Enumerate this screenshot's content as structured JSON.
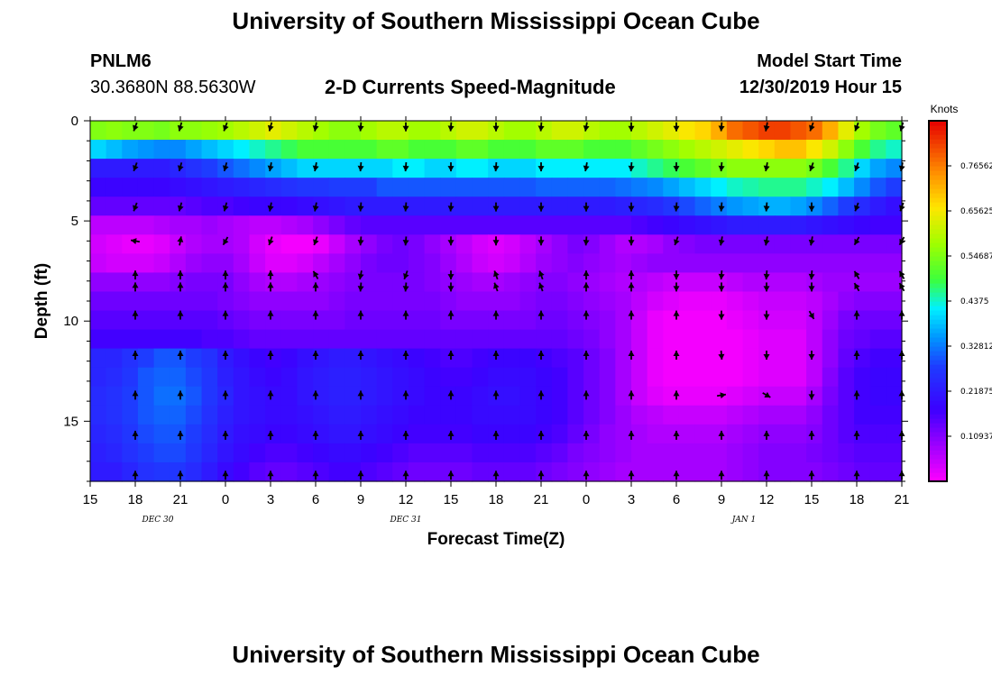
{
  "header": {
    "title": "University of Southern Mississippi Ocean Cube",
    "station": "PNLM6",
    "coords": "30.3680N 88.5630W",
    "subtitle": "2-D Currents Speed-Magnitude",
    "start_label": "Model Start Time",
    "start_value": "12/30/2019 Hour 15"
  },
  "footer": {
    "title": "University of Southern Mississippi Ocean Cube"
  },
  "chart_data": {
    "type": "heatmap",
    "title": "2-D Currents Speed-Magnitude",
    "xlabel": "Forecast Time(Z)",
    "ylabel": "Depth (ft)",
    "x_tick_labels": [
      "15",
      "18",
      "21",
      "0",
      "3",
      "6",
      "9",
      "12",
      "15",
      "18",
      "21",
      "0",
      "3",
      "6",
      "9",
      "12",
      "15",
      "18",
      "21"
    ],
    "x_hours": [
      0,
      3,
      6,
      9,
      12,
      15,
      18,
      21,
      24,
      27,
      30,
      33,
      36,
      39,
      42,
      45,
      48,
      51,
      54
    ],
    "date_labels": [
      {
        "text": "DEC  30",
        "hour": 4.5
      },
      {
        "text": "DEC  31",
        "hour": 21
      },
      {
        "text": "JAN  1",
        "hour": 43.5
      }
    ],
    "y_ticks": [
      0,
      5,
      10,
      15
    ],
    "ylim": [
      0,
      18
    ],
    "colorbar": {
      "unit": "Knots",
      "range": [
        0,
        0.875
      ],
      "tick_values": [
        0.10937,
        0.21875,
        0.32812,
        0.4375,
        0.54687,
        0.65625,
        0.76562
      ],
      "tick_labels": [
        "0.10937",
        "0.21875",
        "0.32812",
        "0.4375",
        "0.54687",
        "0.65625",
        "0.76562"
      ]
    },
    "depth_layers_ft": [
      0.3,
      1,
      2,
      3,
      4,
      5,
      6,
      7,
      8,
      9,
      10,
      11,
      12,
      13,
      14,
      15,
      16,
      17,
      17.8
    ],
    "arrow_hours": [
      3,
      6,
      9,
      12,
      15,
      18,
      21,
      24,
      27,
      30,
      33,
      36,
      39,
      42,
      45,
      48,
      51,
      54
    ],
    "arrow_depths_ft": [
      0.3,
      2.3,
      4.3,
      6,
      7.7,
      8.3,
      9.7,
      11.7,
      13.7,
      15.7,
      17.7
    ],
    "arrow_directions_deg": [
      [
        200,
        195,
        200,
        195,
        190,
        185,
        180,
        185,
        180,
        185,
        190,
        180,
        180,
        185,
        190,
        200,
        200,
        195
      ],
      [
        200,
        195,
        195,
        190,
        190,
        185,
        185,
        180,
        185,
        180,
        190,
        185,
        180,
        185,
        190,
        200,
        200,
        190
      ],
      [
        200,
        195,
        195,
        190,
        190,
        185,
        185,
        185,
        180,
        180,
        180,
        180,
        185,
        185,
        185,
        180,
        200,
        200
      ],
      [
        280,
        10,
        210,
        200,
        200,
        185,
        185,
        180,
        180,
        180,
        185,
        180,
        200,
        190,
        190,
        190,
        210,
        210
      ],
      [
        0,
        0,
        0,
        0,
        330,
        190,
        200,
        180,
        340,
        340,
        0,
        0,
        180,
        185,
        185,
        185,
        330,
        330
      ],
      [
        0,
        0,
        0,
        0,
        0,
        185,
        185,
        180,
        340,
        340,
        0,
        0,
        180,
        180,
        180,
        180,
        330,
        330
      ],
      [
        0,
        0,
        0,
        0,
        0,
        0,
        0,
        0,
        0,
        0,
        0,
        0,
        0,
        180,
        180,
        150,
        0,
        0
      ],
      [
        0,
        0,
        0,
        0,
        0,
        0,
        0,
        0,
        0,
        0,
        0,
        0,
        0,
        175,
        180,
        180,
        0,
        0
      ],
      [
        0,
        0,
        0,
        0,
        0,
        0,
        0,
        0,
        0,
        0,
        0,
        0,
        0,
        80,
        120,
        180,
        0,
        0
      ],
      [
        0,
        0,
        0,
        0,
        0,
        0,
        0,
        0,
        0,
        0,
        0,
        0,
        0,
        0,
        0,
        0,
        0,
        0
      ],
      [
        0,
        0,
        0,
        0,
        0,
        0,
        0,
        0,
        0,
        0,
        0,
        0,
        0,
        0,
        0,
        0,
        0,
        0
      ]
    ],
    "speed_grid_knots": [
      [
        0.55,
        0.56,
        0.55,
        0.55,
        0.54,
        0.56,
        0.56,
        0.57,
        0.58,
        0.6,
        0.62,
        0.64,
        0.62,
        0.6,
        0.58,
        0.56,
        0.56,
        0.58,
        0.6,
        0.6,
        0.58,
        0.58,
        0.6,
        0.62,
        0.62,
        0.6,
        0.58,
        0.58,
        0.6,
        0.62,
        0.62,
        0.6,
        0.58,
        0.58,
        0.6,
        0.62,
        0.64,
        0.66,
        0.68,
        0.72,
        0.78,
        0.8,
        0.82,
        0.82,
        0.8,
        0.78,
        0.72,
        0.64,
        0.58,
        0.54,
        0.52
      ],
      [
        0.4,
        0.38,
        0.36,
        0.35,
        0.34,
        0.34,
        0.36,
        0.38,
        0.4,
        0.42,
        0.44,
        0.46,
        0.48,
        0.5,
        0.5,
        0.5,
        0.5,
        0.5,
        0.52,
        0.52,
        0.5,
        0.5,
        0.5,
        0.52,
        0.52,
        0.5,
        0.5,
        0.5,
        0.52,
        0.52,
        0.52,
        0.5,
        0.5,
        0.5,
        0.52,
        0.54,
        0.56,
        0.58,
        0.6,
        0.62,
        0.64,
        0.66,
        0.68,
        0.7,
        0.7,
        0.66,
        0.62,
        0.56,
        0.5,
        0.46,
        0.44
      ],
      [
        0.22,
        0.22,
        0.22,
        0.22,
        0.22,
        0.24,
        0.26,
        0.28,
        0.3,
        0.32,
        0.34,
        0.36,
        0.38,
        0.4,
        0.4,
        0.4,
        0.4,
        0.4,
        0.4,
        0.42,
        0.42,
        0.4,
        0.4,
        0.42,
        0.42,
        0.4,
        0.4,
        0.4,
        0.42,
        0.42,
        0.42,
        0.42,
        0.42,
        0.42,
        0.44,
        0.46,
        0.48,
        0.5,
        0.52,
        0.54,
        0.56,
        0.56,
        0.56,
        0.56,
        0.56,
        0.54,
        0.5,
        0.46,
        0.4,
        0.36,
        0.34
      ],
      [
        0.18,
        0.18,
        0.18,
        0.18,
        0.18,
        0.19,
        0.2,
        0.21,
        0.22,
        0.23,
        0.24,
        0.25,
        0.26,
        0.27,
        0.27,
        0.28,
        0.28,
        0.28,
        0.3,
        0.3,
        0.3,
        0.3,
        0.3,
        0.3,
        0.3,
        0.3,
        0.3,
        0.3,
        0.31,
        0.31,
        0.31,
        0.31,
        0.31,
        0.32,
        0.33,
        0.34,
        0.36,
        0.38,
        0.4,
        0.42,
        0.44,
        0.45,
        0.46,
        0.46,
        0.46,
        0.44,
        0.42,
        0.38,
        0.34,
        0.3,
        0.28
      ],
      [
        0.14,
        0.14,
        0.14,
        0.14,
        0.14,
        0.14,
        0.15,
        0.16,
        0.16,
        0.17,
        0.18,
        0.18,
        0.18,
        0.19,
        0.2,
        0.21,
        0.22,
        0.22,
        0.22,
        0.22,
        0.22,
        0.22,
        0.22,
        0.22,
        0.22,
        0.22,
        0.22,
        0.22,
        0.22,
        0.22,
        0.22,
        0.22,
        0.22,
        0.23,
        0.24,
        0.25,
        0.27,
        0.29,
        0.31,
        0.33,
        0.35,
        0.36,
        0.37,
        0.37,
        0.36,
        0.34,
        0.31,
        0.28,
        0.25,
        0.22,
        0.2
      ],
      [
        0.06,
        0.06,
        0.06,
        0.06,
        0.07,
        0.08,
        0.08,
        0.09,
        0.08,
        0.07,
        0.06,
        0.06,
        0.07,
        0.08,
        0.1,
        0.12,
        0.14,
        0.15,
        0.15,
        0.15,
        0.15,
        0.15,
        0.15,
        0.15,
        0.15,
        0.15,
        0.15,
        0.15,
        0.15,
        0.15,
        0.15,
        0.15,
        0.15,
        0.15,
        0.16,
        0.17,
        0.18,
        0.19,
        0.2,
        0.21,
        0.22,
        0.22,
        0.22,
        0.22,
        0.22,
        0.21,
        0.2,
        0.19,
        0.18,
        0.17,
        0.17
      ],
      [
        0.04,
        0.03,
        0.02,
        0.02,
        0.03,
        0.05,
        0.07,
        0.08,
        0.08,
        0.07,
        0.04,
        0.02,
        0.01,
        0.01,
        0.02,
        0.05,
        0.08,
        0.1,
        0.12,
        0.13,
        0.12,
        0.1,
        0.08,
        0.06,
        0.04,
        0.03,
        0.04,
        0.06,
        0.08,
        0.1,
        0.12,
        0.11,
        0.09,
        0.07,
        0.07,
        0.08,
        0.1,
        0.11,
        0.12,
        0.12,
        0.12,
        0.12,
        0.12,
        0.12,
        0.12,
        0.12,
        0.12,
        0.12,
        0.12,
        0.12,
        0.12
      ],
      [
        0.05,
        0.04,
        0.04,
        0.04,
        0.05,
        0.07,
        0.09,
        0.1,
        0.1,
        0.08,
        0.05,
        0.03,
        0.03,
        0.04,
        0.06,
        0.08,
        0.1,
        0.12,
        0.13,
        0.13,
        0.12,
        0.11,
        0.09,
        0.07,
        0.05,
        0.04,
        0.05,
        0.07,
        0.09,
        0.1,
        0.11,
        0.1,
        0.09,
        0.08,
        0.09,
        0.1,
        0.1,
        0.1,
        0.1,
        0.1,
        0.1,
        0.1,
        0.1,
        0.1,
        0.1,
        0.1,
        0.1,
        0.1,
        0.1,
        0.1,
        0.1
      ],
      [
        0.1,
        0.1,
        0.1,
        0.1,
        0.1,
        0.11,
        0.12,
        0.12,
        0.12,
        0.1,
        0.08,
        0.07,
        0.07,
        0.08,
        0.09,
        0.1,
        0.11,
        0.12,
        0.12,
        0.12,
        0.12,
        0.11,
        0.1,
        0.09,
        0.08,
        0.08,
        0.09,
        0.1,
        0.11,
        0.11,
        0.1,
        0.09,
        0.08,
        0.07,
        0.07,
        0.06,
        0.05,
        0.05,
        0.05,
        0.05,
        0.06,
        0.07,
        0.07,
        0.07,
        0.07,
        0.08,
        0.09,
        0.09,
        0.09,
        0.09,
        0.09
      ],
      [
        0.13,
        0.13,
        0.13,
        0.13,
        0.13,
        0.13,
        0.13,
        0.13,
        0.12,
        0.11,
        0.1,
        0.1,
        0.1,
        0.1,
        0.1,
        0.11,
        0.12,
        0.12,
        0.12,
        0.12,
        0.12,
        0.12,
        0.11,
        0.1,
        0.1,
        0.1,
        0.1,
        0.11,
        0.12,
        0.12,
        0.11,
        0.1,
        0.09,
        0.08,
        0.06,
        0.04,
        0.03,
        0.02,
        0.02,
        0.02,
        0.03,
        0.04,
        0.05,
        0.05,
        0.05,
        0.06,
        0.08,
        0.1,
        0.11,
        0.11,
        0.11
      ],
      [
        0.15,
        0.15,
        0.15,
        0.15,
        0.15,
        0.15,
        0.15,
        0.15,
        0.14,
        0.13,
        0.12,
        0.12,
        0.12,
        0.12,
        0.12,
        0.12,
        0.13,
        0.13,
        0.13,
        0.13,
        0.13,
        0.13,
        0.12,
        0.12,
        0.12,
        0.12,
        0.12,
        0.12,
        0.13,
        0.13,
        0.12,
        0.11,
        0.1,
        0.08,
        0.05,
        0.02,
        0.01,
        0.01,
        0.01,
        0.01,
        0.02,
        0.03,
        0.04,
        0.04,
        0.04,
        0.06,
        0.09,
        0.12,
        0.13,
        0.13,
        0.13
      ],
      [
        0.17,
        0.17,
        0.17,
        0.17,
        0.17,
        0.17,
        0.17,
        0.16,
        0.16,
        0.15,
        0.14,
        0.14,
        0.14,
        0.14,
        0.14,
        0.14,
        0.14,
        0.14,
        0.14,
        0.14,
        0.14,
        0.14,
        0.14,
        0.14,
        0.14,
        0.14,
        0.14,
        0.14,
        0.14,
        0.14,
        0.13,
        0.12,
        0.1,
        0.08,
        0.05,
        0.02,
        0.01,
        0.01,
        0.01,
        0.01,
        0.01,
        0.02,
        0.03,
        0.03,
        0.03,
        0.06,
        0.1,
        0.13,
        0.14,
        0.15,
        0.15
      ],
      [
        0.24,
        0.24,
        0.26,
        0.28,
        0.3,
        0.3,
        0.28,
        0.26,
        0.22,
        0.2,
        0.18,
        0.17,
        0.18,
        0.2,
        0.21,
        0.22,
        0.22,
        0.21,
        0.2,
        0.19,
        0.18,
        0.17,
        0.16,
        0.16,
        0.17,
        0.18,
        0.18,
        0.18,
        0.17,
        0.16,
        0.15,
        0.13,
        0.11,
        0.08,
        0.05,
        0.02,
        0.01,
        0.01,
        0.01,
        0.01,
        0.01,
        0.02,
        0.03,
        0.03,
        0.03,
        0.06,
        0.1,
        0.14,
        0.16,
        0.17,
        0.17
      ],
      [
        0.24,
        0.25,
        0.27,
        0.3,
        0.31,
        0.31,
        0.29,
        0.27,
        0.23,
        0.21,
        0.19,
        0.18,
        0.19,
        0.21,
        0.22,
        0.23,
        0.23,
        0.22,
        0.21,
        0.2,
        0.19,
        0.18,
        0.17,
        0.17,
        0.18,
        0.19,
        0.19,
        0.19,
        0.18,
        0.17,
        0.15,
        0.13,
        0.11,
        0.08,
        0.05,
        0.02,
        0.01,
        0.01,
        0.01,
        0.01,
        0.01,
        0.02,
        0.03,
        0.03,
        0.03,
        0.06,
        0.11,
        0.15,
        0.17,
        0.18,
        0.18
      ],
      [
        0.25,
        0.26,
        0.28,
        0.3,
        0.32,
        0.32,
        0.3,
        0.27,
        0.24,
        0.21,
        0.2,
        0.19,
        0.19,
        0.21,
        0.22,
        0.23,
        0.23,
        0.22,
        0.21,
        0.2,
        0.19,
        0.18,
        0.18,
        0.18,
        0.19,
        0.2,
        0.2,
        0.19,
        0.18,
        0.17,
        0.15,
        0.13,
        0.11,
        0.08,
        0.05,
        0.03,
        0.02,
        0.02,
        0.02,
        0.02,
        0.03,
        0.04,
        0.05,
        0.05,
        0.05,
        0.08,
        0.12,
        0.15,
        0.17,
        0.18,
        0.18
      ],
      [
        0.25,
        0.26,
        0.28,
        0.3,
        0.31,
        0.31,
        0.29,
        0.26,
        0.23,
        0.21,
        0.2,
        0.19,
        0.19,
        0.2,
        0.21,
        0.22,
        0.22,
        0.21,
        0.2,
        0.19,
        0.18,
        0.18,
        0.18,
        0.18,
        0.19,
        0.19,
        0.19,
        0.19,
        0.18,
        0.17,
        0.15,
        0.13,
        0.11,
        0.09,
        0.07,
        0.06,
        0.05,
        0.05,
        0.05,
        0.05,
        0.06,
        0.07,
        0.08,
        0.08,
        0.08,
        0.1,
        0.13,
        0.15,
        0.17,
        0.17,
        0.17
      ],
      [
        0.24,
        0.25,
        0.27,
        0.29,
        0.3,
        0.3,
        0.28,
        0.25,
        0.22,
        0.2,
        0.19,
        0.18,
        0.18,
        0.19,
        0.2,
        0.21,
        0.21,
        0.2,
        0.19,
        0.18,
        0.17,
        0.17,
        0.17,
        0.17,
        0.18,
        0.18,
        0.18,
        0.18,
        0.17,
        0.16,
        0.14,
        0.12,
        0.1,
        0.09,
        0.08,
        0.07,
        0.07,
        0.07,
        0.07,
        0.07,
        0.08,
        0.09,
        0.1,
        0.1,
        0.1,
        0.11,
        0.13,
        0.15,
        0.16,
        0.16,
        0.16
      ],
      [
        0.23,
        0.24,
        0.26,
        0.28,
        0.29,
        0.29,
        0.27,
        0.24,
        0.21,
        0.19,
        0.17,
        0.16,
        0.16,
        0.17,
        0.18,
        0.19,
        0.19,
        0.18,
        0.17,
        0.16,
        0.15,
        0.15,
        0.15,
        0.15,
        0.16,
        0.16,
        0.16,
        0.16,
        0.15,
        0.14,
        0.12,
        0.11,
        0.1,
        0.09,
        0.08,
        0.08,
        0.08,
        0.08,
        0.08,
        0.08,
        0.09,
        0.1,
        0.11,
        0.11,
        0.11,
        0.12,
        0.13,
        0.14,
        0.15,
        0.15,
        0.15
      ],
      [
        0.22,
        0.22,
        0.24,
        0.26,
        0.27,
        0.27,
        0.25,
        0.22,
        0.19,
        0.17,
        0.15,
        0.14,
        0.14,
        0.15,
        0.16,
        0.17,
        0.17,
        0.16,
        0.15,
        0.14,
        0.13,
        0.13,
        0.13,
        0.13,
        0.14,
        0.14,
        0.14,
        0.14,
        0.13,
        0.12,
        0.11,
        0.1,
        0.09,
        0.08,
        0.08,
        0.08,
        0.08,
        0.08,
        0.08,
        0.08,
        0.09,
        0.1,
        0.11,
        0.11,
        0.11,
        0.11,
        0.12,
        0.13,
        0.14,
        0.14,
        0.14
      ]
    ]
  }
}
